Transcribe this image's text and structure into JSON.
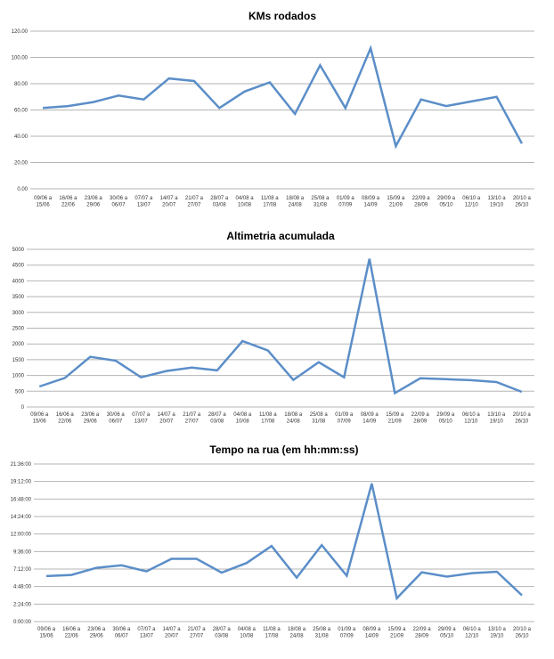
{
  "chart_data": [
    {
      "type": "line",
      "title": "KMs rodados",
      "ylim": [
        0,
        120
      ],
      "yticks": [
        "0.00",
        "20.00",
        "40.00",
        "60.00",
        "80.00",
        "100.00",
        "120.00"
      ],
      "grid": true,
      "color": "#5b8ec8",
      "categories": [
        [
          "09/06 a",
          "15/06"
        ],
        [
          "16/06 a",
          "22/06"
        ],
        [
          "23/06 a",
          "29/06"
        ],
        [
          "30/06 a",
          "06/07"
        ],
        [
          "07/07 a",
          "13/07"
        ],
        [
          "14/07 a",
          "20/07"
        ],
        [
          "21/07 a",
          "27/07"
        ],
        [
          "28/07 a",
          "03/08"
        ],
        [
          "04/08 a",
          "10/08"
        ],
        [
          "11/08 a",
          "17/08"
        ],
        [
          "18/08 a",
          "24/08"
        ],
        [
          "25/08 a",
          "31/08"
        ],
        [
          "01/09 a",
          "07/09"
        ],
        [
          "08/09 a",
          "14/09"
        ],
        [
          "15/09 a",
          "21/09"
        ],
        [
          "22/09 a",
          "28/09"
        ],
        [
          "29/09 a",
          "05/10"
        ],
        [
          "06/10 a",
          "12/10"
        ],
        [
          "13/10 a",
          "19/10"
        ],
        [
          "20/10 a",
          "26/10"
        ]
      ],
      "values": [
        61.5,
        63,
        66,
        71,
        68,
        84,
        82,
        61.5,
        74,
        81,
        57,
        94,
        61.5,
        107,
        32.5,
        68,
        63,
        66.5,
        70,
        34.5
      ]
    },
    {
      "type": "line",
      "title": "Altimetria acumulada",
      "ylim": [
        0,
        5000
      ],
      "yticks": [
        "0",
        "500",
        "1000",
        "1500",
        "2000",
        "2500",
        "3000",
        "3500",
        "4000",
        "4500",
        "5000"
      ],
      "grid": true,
      "color": "#5b8ec8",
      "categories": [
        [
          "09/06 a",
          "15/06"
        ],
        [
          "16/06 a",
          "22/06"
        ],
        [
          "23/06 a",
          "29/06"
        ],
        [
          "30/06 a",
          "06/07"
        ],
        [
          "07/07 a",
          "13/07"
        ],
        [
          "14/07 a",
          "20/07"
        ],
        [
          "21/07 a",
          "27/07"
        ],
        [
          "28/07 a",
          "03/08"
        ],
        [
          "04/08 a",
          "10/08"
        ],
        [
          "11/08 a",
          "17/08"
        ],
        [
          "18/08 a",
          "24/08"
        ],
        [
          "25/08 a",
          "31/08"
        ],
        [
          "01/09 a",
          "07/09"
        ],
        [
          "08/09 a",
          "14/09"
        ],
        [
          "15/09 a",
          "21/09"
        ],
        [
          "22/09 a",
          "28/09"
        ],
        [
          "29/09 a",
          "05/10"
        ],
        [
          "06/10 a",
          "12/10"
        ],
        [
          "13/10 a",
          "19/10"
        ],
        [
          "20/10 a",
          "26/10"
        ]
      ],
      "values": [
        650,
        920,
        1590,
        1470,
        940,
        1140,
        1250,
        1160,
        2090,
        1790,
        860,
        1420,
        940,
        4700,
        440,
        910,
        880,
        850,
        790,
        480
      ]
    },
    {
      "type": "line",
      "title": "Tempo na rua (em hh:mm:ss)",
      "ylim": [
        "0:00:00",
        "21:36:00"
      ],
      "yticks": [
        "0:00:00",
        "2:24:00",
        "4:48:00",
        "7:12:00",
        "9:36:00",
        "12:00:00",
        "14:24:00",
        "16:48:00",
        "19:12:00",
        "21:36:00"
      ],
      "grid": true,
      "color": "#5b8ec8",
      "categories": [
        [
          "09/06 a",
          "15/06"
        ],
        [
          "16/06 a",
          "22/06"
        ],
        [
          "23/06 a",
          "29/06"
        ],
        [
          "30/06 a",
          "06/07"
        ],
        [
          "07/07 a",
          "13/07"
        ],
        [
          "14/07 a",
          "20/07"
        ],
        [
          "21/07 a",
          "27/07"
        ],
        [
          "28/07 a",
          "03/08"
        ],
        [
          "04/08 a",
          "10/08"
        ],
        [
          "11/08 a",
          "17/08"
        ],
        [
          "18/08 a",
          "24/08"
        ],
        [
          "25/08 a",
          "31/08"
        ],
        [
          "01/09 a",
          "07/09"
        ],
        [
          "08/09 a",
          "14/09"
        ],
        [
          "15/09 a",
          "21/09"
        ],
        [
          "22/09 a",
          "28/09"
        ],
        [
          "29/09 a",
          "05/10"
        ],
        [
          "06/10 a",
          "12/10"
        ],
        [
          "13/10 a",
          "19/10"
        ],
        [
          "20/10 a",
          "26/10"
        ]
      ],
      "values": [
        "6:14:00",
        "6:24:00",
        "7:22:00",
        "7:43:00",
        "6:53:00",
        "8:36:00",
        "8:36:00",
        "6:43:00",
        "8:02:00",
        "10:22:00",
        "6:02:00",
        "10:29:00",
        "6:17:00",
        "18:55:00",
        "3:12:00",
        "6:46:00",
        "6:10:00",
        "6:38:00",
        "6:50:00",
        "3:36:00"
      ]
    }
  ]
}
